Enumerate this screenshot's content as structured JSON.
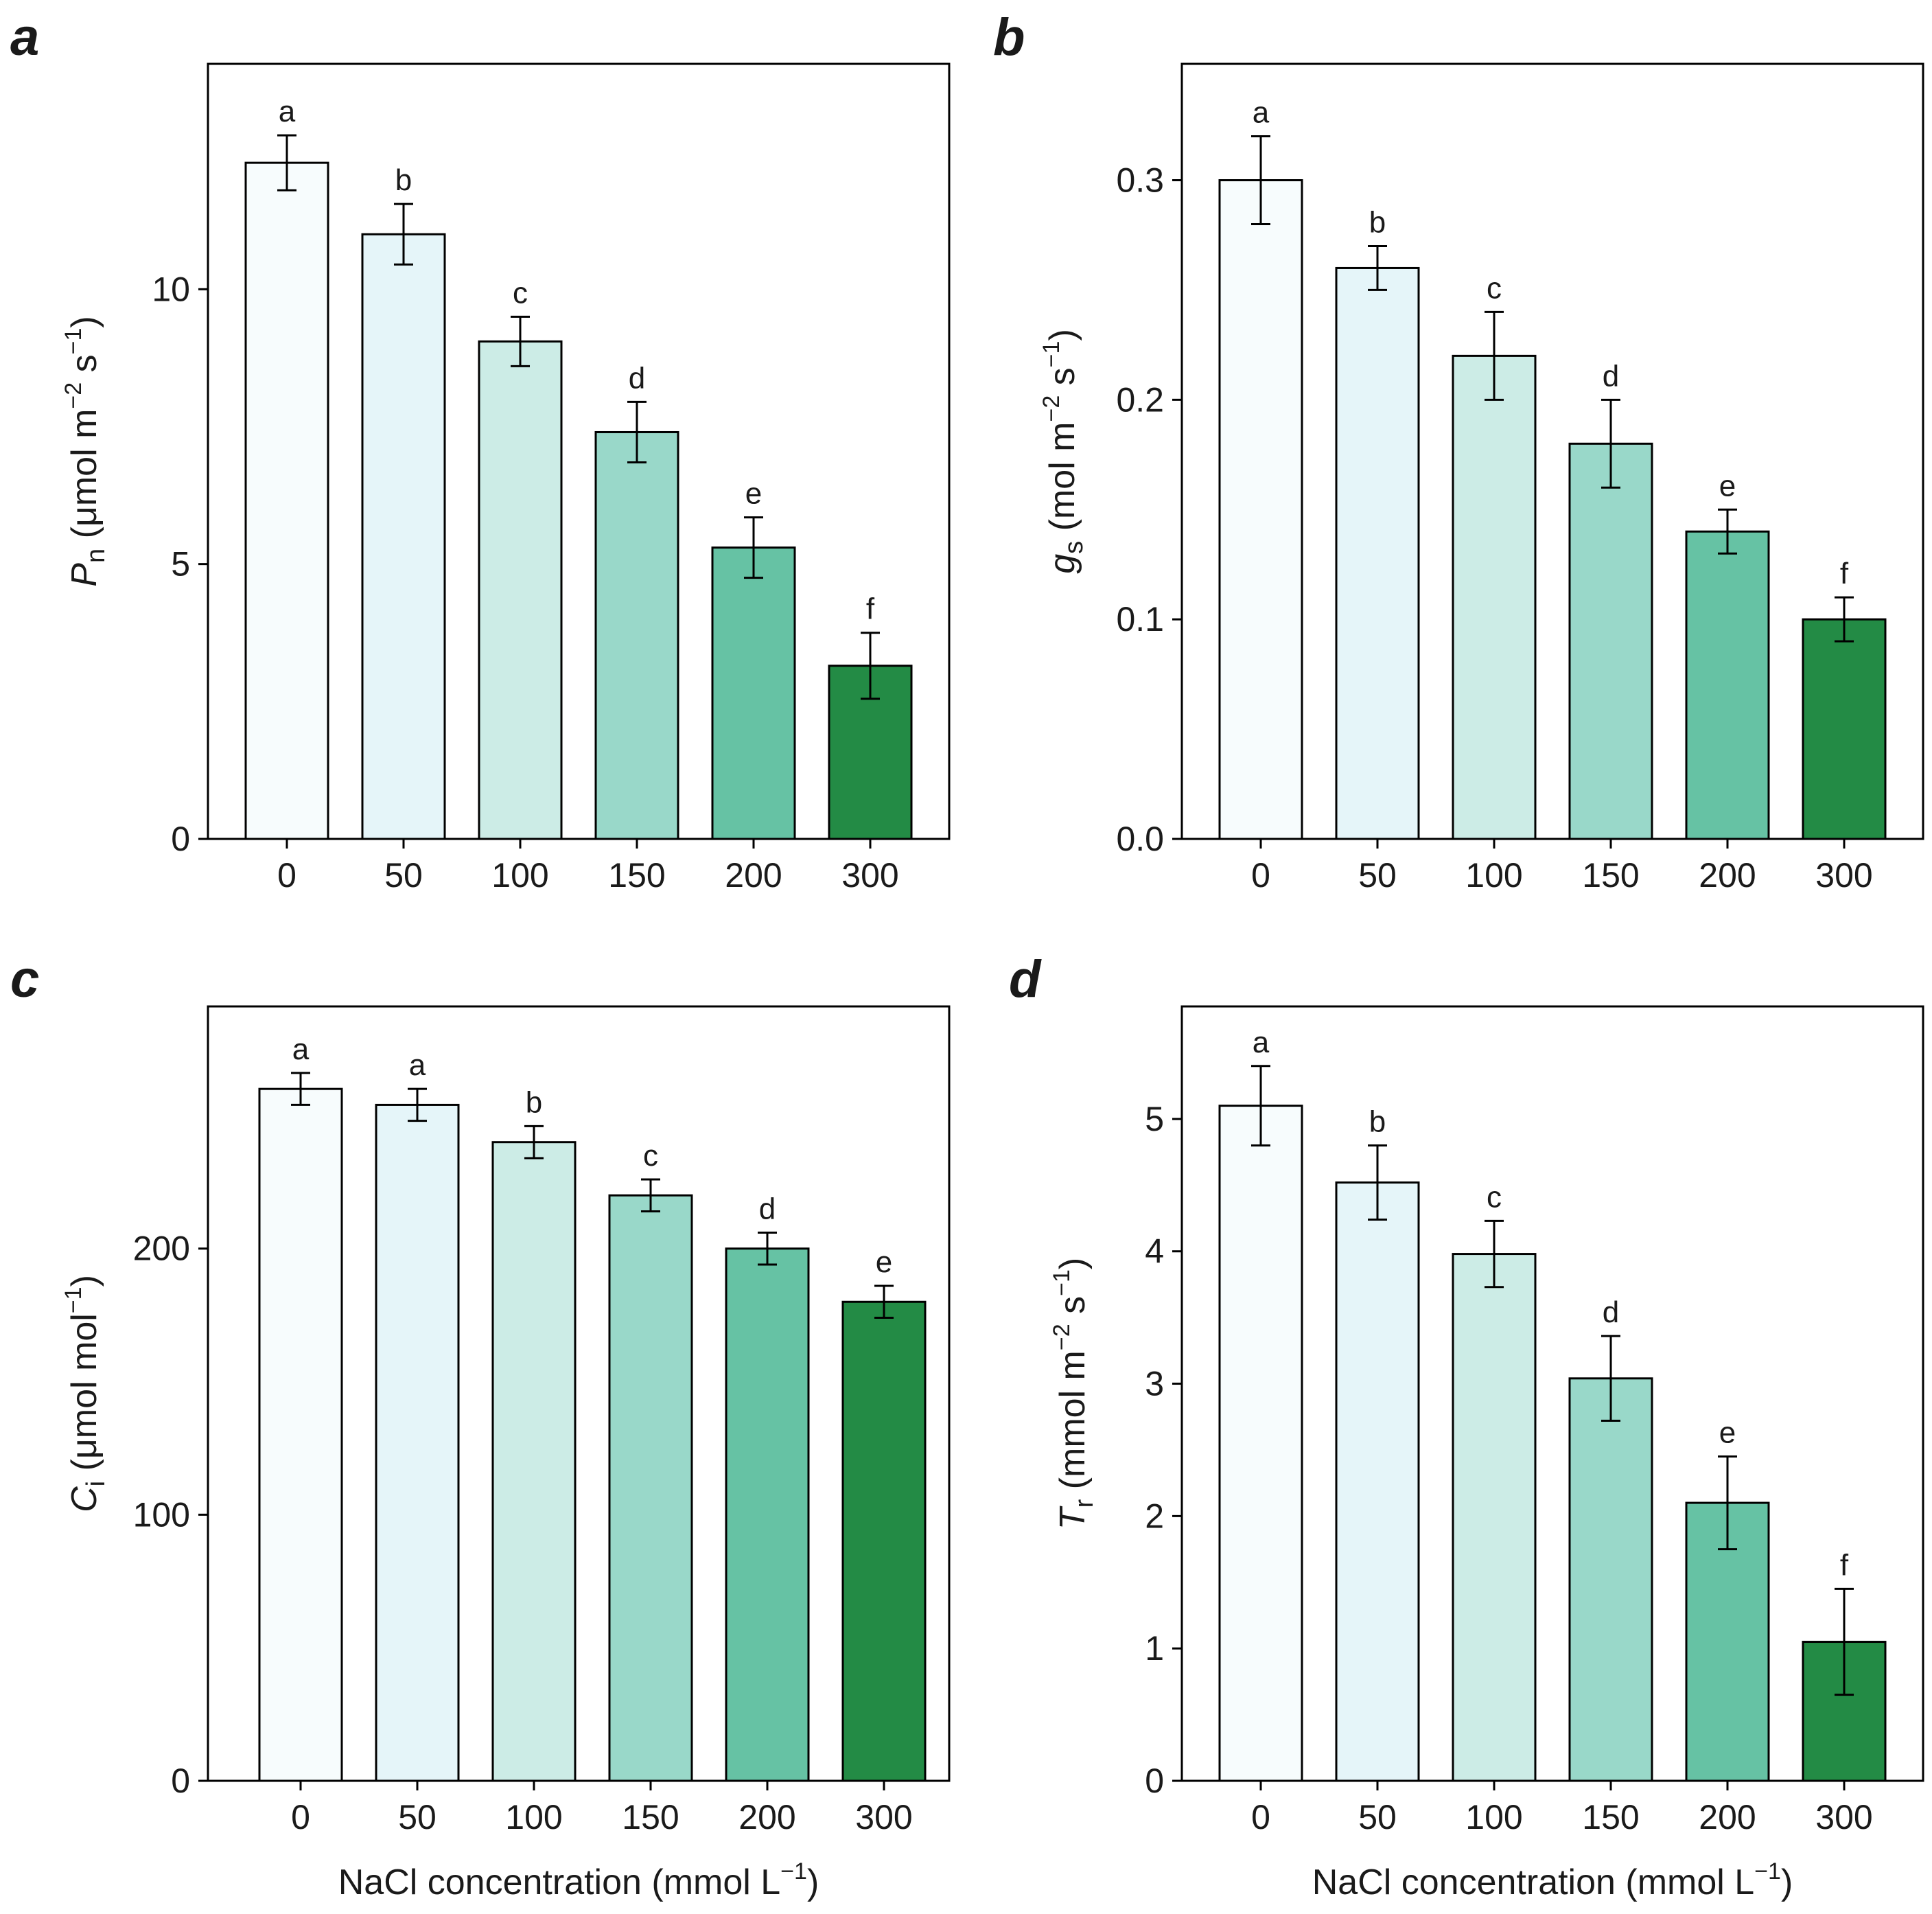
{
  "figure": {
    "colors": {
      "bar_fills": [
        "#f7fcfd",
        "#e5f5f9",
        "#ccece6",
        "#99d8c9",
        "#66c2a4",
        "#238b45"
      ],
      "bar_stroke": "#000000",
      "axis": "#000000"
    },
    "shared_xlabel": {
      "text": "NaCl concentration (mmol L",
      "sup": "−1",
      "tail": ")"
    }
  },
  "chart_data": [
    {
      "id": "a",
      "panel_label": "a",
      "type": "bar",
      "categories": [
        "0",
        "50",
        "100",
        "150",
        "200",
        "300"
      ],
      "values": [
        12.3,
        11.0,
        9.05,
        7.4,
        5.3,
        3.15
      ],
      "errors": [
        0.5,
        0.55,
        0.45,
        0.55,
        0.55,
        0.6
      ],
      "significance": [
        "a",
        "b",
        "c",
        "d",
        "e",
        "f"
      ],
      "ylim": [
        0,
        14.1
      ],
      "yticks": [
        0,
        5,
        10
      ],
      "ytick_labels": [
        "0",
        "5",
        "10"
      ],
      "ylabel": {
        "main": "P",
        "sub": "n",
        "rest": " (μmol m",
        "sup1": "−2",
        "mid": " s",
        "sup2": "−1",
        "tail": ")"
      },
      "xlabel": ""
    },
    {
      "id": "b",
      "panel_label": "b",
      "type": "bar",
      "categories": [
        "0",
        "50",
        "100",
        "150",
        "200",
        "300"
      ],
      "values": [
        0.3,
        0.26,
        0.22,
        0.18,
        0.14,
        0.1
      ],
      "errors": [
        0.02,
        0.01,
        0.02,
        0.02,
        0.01,
        0.01
      ],
      "significance": [
        "a",
        "b",
        "c",
        "d",
        "e",
        "f"
      ],
      "ylim": [
        0,
        0.353
      ],
      "yticks": [
        0,
        0.1,
        0.2,
        0.3
      ],
      "ytick_labels": [
        "0.0",
        "0.1",
        "0.2",
        "0.3"
      ],
      "ylabel": {
        "main": "g",
        "sub": "s",
        "rest": " (mol m",
        "sup1": "−2",
        "mid": " s",
        "sup2": "−1",
        "tail": ")"
      },
      "xlabel": ""
    },
    {
      "id": "c",
      "panel_label": "c",
      "type": "bar",
      "categories": [
        "0",
        "50",
        "100",
        "150",
        "200",
        "300"
      ],
      "values": [
        260,
        254,
        240,
        220,
        200,
        180
      ],
      "errors": [
        6,
        6,
        6,
        6,
        6,
        6
      ],
      "significance": [
        "a",
        "a",
        "b",
        "c",
        "d",
        "e"
      ],
      "ylim": [
        0,
        291
      ],
      "yticks": [
        0,
        100,
        200
      ],
      "ytick_labels": [
        "0",
        "100",
        "200"
      ],
      "ylabel": {
        "main": "C",
        "sub": "i",
        "rest": " (μmol mol",
        "sup1": "−1",
        "mid": "",
        "sup2": "",
        "tail": ")"
      },
      "xlabel": "shared"
    },
    {
      "id": "d",
      "panel_label": "d",
      "type": "bar",
      "categories": [
        "0",
        "50",
        "100",
        "150",
        "200",
        "300"
      ],
      "values": [
        5.1,
        4.52,
        3.98,
        3.04,
        2.1,
        1.05
      ],
      "errors": [
        0.3,
        0.28,
        0.25,
        0.32,
        0.35,
        0.4
      ],
      "significance": [
        "a",
        "b",
        "c",
        "d",
        "e",
        "f"
      ],
      "ylim": [
        0,
        5.85
      ],
      "yticks": [
        0,
        1,
        2,
        3,
        4,
        5
      ],
      "ytick_labels": [
        "0",
        "1",
        "2",
        "3",
        "4",
        "5"
      ],
      "ylabel": {
        "main": "T",
        "sub": "r",
        "rest": " (mmol m",
        "sup1": "−2",
        "mid": " s",
        "sup2": "−1",
        "tail": ")"
      },
      "xlabel": "shared"
    }
  ]
}
